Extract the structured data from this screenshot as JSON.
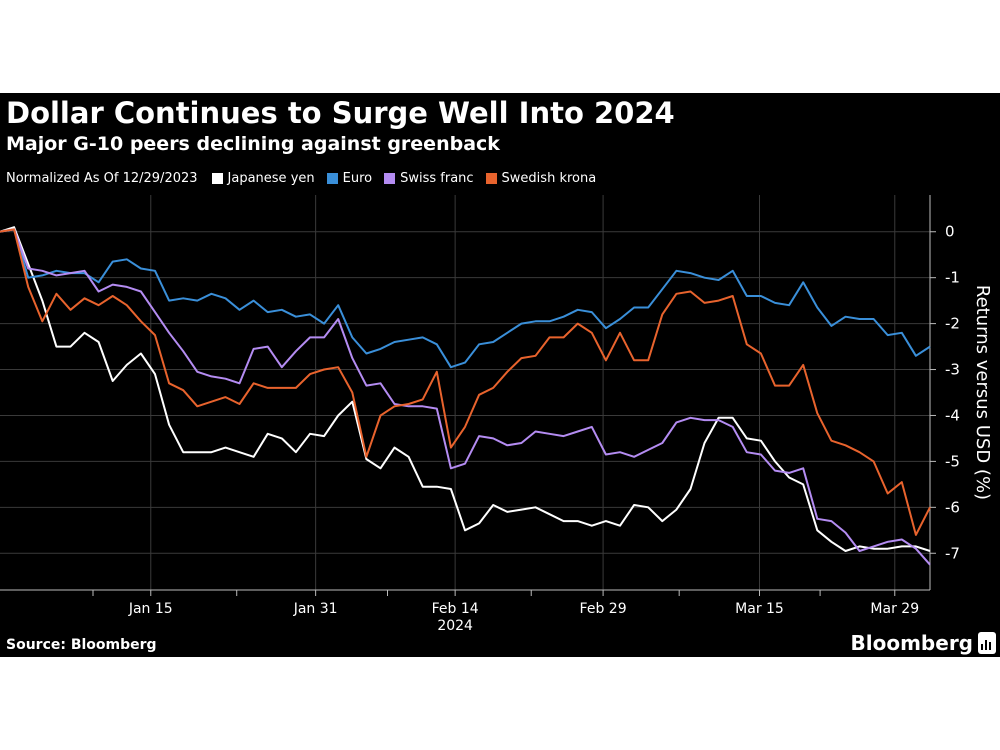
{
  "title": "Dollar Continues to Surge Well Into 2024",
  "subtitle": "Major G-10 peers declining against greenback",
  "source": "Source: Bloomberg",
  "brand": "Bloomberg",
  "chart_data": {
    "type": "line",
    "normalization_note": "Normalized As Of 12/29/2023",
    "ylabel": "Returns versus USD (%)",
    "ylim": [
      -7.8,
      0.8
    ],
    "yticks": [
      0,
      -1,
      -2,
      -3,
      -4,
      -5,
      -6,
      -7
    ],
    "xlim": [
      0,
      66
    ],
    "xticks": [
      {
        "x": 10.7,
        "label": "Jan 15"
      },
      {
        "x": 22.4,
        "label": "Jan 31"
      },
      {
        "x": 32.3,
        "label": "Feb 14",
        "sublabel": "2024"
      },
      {
        "x": 42.8,
        "label": "Feb 29"
      },
      {
        "x": 53.9,
        "label": "Mar 15"
      },
      {
        "x": 63.5,
        "label": "Mar 29"
      }
    ],
    "minor_xticks": [
      6.6,
      16.8,
      27.5,
      37.7,
      48.2,
      58.2
    ],
    "series": [
      {
        "name": "Japanese yen",
        "color": "#ffffff",
        "values": [
          0,
          0.1,
          -0.7,
          -1.5,
          -2.5,
          -2.5,
          -2.2,
          -2.4,
          -3.25,
          -2.9,
          -2.65,
          -3.1,
          -4.2,
          -4.8,
          -4.8,
          -4.8,
          -4.7,
          -4.8,
          -4.9,
          -4.4,
          -4.5,
          -4.8,
          -4.4,
          -4.45,
          -4.0,
          -3.7,
          -4.95,
          -5.15,
          -4.7,
          -4.9,
          -5.55,
          -5.55,
          -5.6,
          -6.5,
          -6.35,
          -5.95,
          -6.1,
          -6.05,
          -6.0,
          -6.15,
          -6.3,
          -6.3,
          -6.4,
          -6.3,
          -6.4,
          -5.95,
          -6.0,
          -6.3,
          -6.05,
          -5.6,
          -4.6,
          -4.05,
          -4.05,
          -4.5,
          -4.55,
          -5.0,
          -5.35,
          -5.5,
          -6.5,
          -6.75,
          -6.95,
          -6.85,
          -6.9,
          -6.9,
          -6.85,
          -6.85,
          -6.95
        ]
      },
      {
        "name": "Euro",
        "color": "#3a8fd9",
        "values": [
          0,
          0.05,
          -1.0,
          -0.95,
          -0.85,
          -0.9,
          -0.9,
          -1.1,
          -0.65,
          -0.6,
          -0.8,
          -0.85,
          -1.5,
          -1.45,
          -1.5,
          -1.35,
          -1.45,
          -1.7,
          -1.5,
          -1.75,
          -1.7,
          -1.85,
          -1.8,
          -2.0,
          -1.6,
          -2.3,
          -2.65,
          -2.55,
          -2.4,
          -2.35,
          -2.3,
          -2.45,
          -2.95,
          -2.85,
          -2.45,
          -2.4,
          -2.2,
          -2.0,
          -1.95,
          -1.95,
          -1.85,
          -1.7,
          -1.75,
          -2.1,
          -1.9,
          -1.65,
          -1.65,
          -1.25,
          -0.85,
          -0.9,
          -1.0,
          -1.05,
          -0.85,
          -1.4,
          -1.4,
          -1.55,
          -1.6,
          -1.1,
          -1.65,
          -2.05,
          -1.85,
          -1.9,
          -1.9,
          -2.25,
          -2.2,
          -2.7,
          -2.5
        ]
      },
      {
        "name": "Swiss franc",
        "color": "#b48cf2",
        "values": [
          0,
          0.05,
          -0.8,
          -0.85,
          -0.95,
          -0.9,
          -0.85,
          -1.3,
          -1.15,
          -1.2,
          -1.3,
          -1.75,
          -2.2,
          -2.6,
          -3.05,
          -3.15,
          -3.2,
          -3.3,
          -2.55,
          -2.5,
          -2.95,
          -2.6,
          -2.3,
          -2.3,
          -1.9,
          -2.75,
          -3.35,
          -3.3,
          -3.75,
          -3.8,
          -3.8,
          -3.85,
          -5.15,
          -5.05,
          -4.45,
          -4.5,
          -4.65,
          -4.6,
          -4.35,
          -4.4,
          -4.45,
          -4.35,
          -4.25,
          -4.85,
          -4.8,
          -4.9,
          -4.75,
          -4.6,
          -4.15,
          -4.05,
          -4.1,
          -4.1,
          -4.25,
          -4.8,
          -4.85,
          -5.2,
          -5.25,
          -5.15,
          -6.25,
          -6.3,
          -6.55,
          -6.95,
          -6.85,
          -6.75,
          -6.7,
          -6.9,
          -7.25
        ]
      },
      {
        "name": "Swedish krona",
        "color": "#e8632d",
        "values": [
          0,
          0.05,
          -1.2,
          -1.95,
          -1.35,
          -1.7,
          -1.45,
          -1.6,
          -1.4,
          -1.6,
          -1.95,
          -2.25,
          -3.3,
          -3.45,
          -3.8,
          -3.7,
          -3.6,
          -3.75,
          -3.3,
          -3.4,
          -3.4,
          -3.4,
          -3.1,
          -3.0,
          -2.95,
          -3.5,
          -4.9,
          -4.0,
          -3.8,
          -3.75,
          -3.65,
          -3.05,
          -4.7,
          -4.25,
          -3.55,
          -3.4,
          -3.05,
          -2.75,
          -2.7,
          -2.3,
          -2.3,
          -2.0,
          -2.2,
          -2.8,
          -2.2,
          -2.8,
          -2.8,
          -1.8,
          -1.35,
          -1.3,
          -1.55,
          -1.5,
          -1.4,
          -2.45,
          -2.65,
          -3.35,
          -3.35,
          -2.9,
          -3.95,
          -4.55,
          -4.65,
          -4.8,
          -5.0,
          -5.7,
          -5.45,
          -6.6,
          -6.0
        ]
      }
    ]
  }
}
